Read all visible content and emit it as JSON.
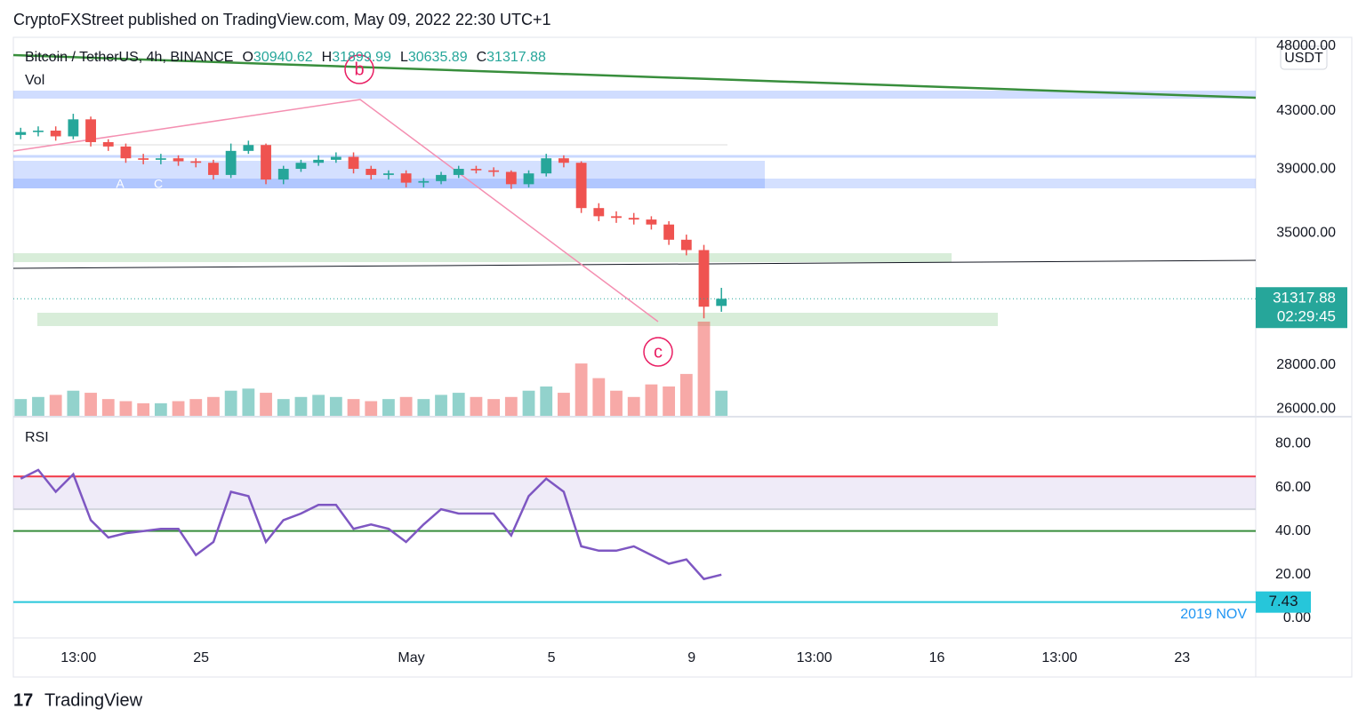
{
  "header": {
    "attribution": "CryptoFXStreet published on TradingView.com, May 09, 2022 22:30 UTC+1",
    "symbol": "Bitcoin / TetherUS, 4h, BINANCE",
    "ohlc_prefixes": [
      "O",
      "H",
      "L",
      "C"
    ],
    "currency": "USDT",
    "countdown": "02:29:45",
    "brand": "TradingView"
  },
  "annotations": [
    "b",
    "c",
    "A",
    "C"
  ],
  "chart_data": [
    {
      "type": "candlestick",
      "up_color": "#26a69a",
      "down_color": "#ef5350",
      "x": [
        -5.15,
        -4.65,
        -4.15,
        -3.65,
        -3.15,
        -2.65,
        -2.15,
        -1.65,
        -1.15,
        -0.65,
        -0.15,
        0.35,
        0.85,
        1.35,
        1.85,
        2.35,
        2.85,
        3.35,
        3.85,
        4.35,
        4.85,
        5.35,
        5.85,
        6.35,
        6.85,
        7.35,
        7.85,
        8.35,
        8.85,
        9.35,
        9.85,
        10.35,
        10.85,
        11.35,
        11.85,
        12.35,
        12.85,
        13.35,
        13.85,
        14.35,
        14.85
      ],
      "open": [
        41300,
        41500,
        41600,
        41200,
        42400,
        40800,
        40500,
        39700,
        39600,
        39700,
        39500,
        39400,
        38600,
        40200,
        40600,
        38300,
        39000,
        39400,
        39600,
        39800,
        39000,
        38600,
        38700,
        38100,
        38200,
        38600,
        39000,
        38900,
        38800,
        38000,
        38700,
        39700,
        39400,
        36500,
        36000,
        35900,
        35800,
        35500,
        34600,
        34000,
        30940.62
      ],
      "high": [
        41800,
        41900,
        41900,
        42800,
        42600,
        41000,
        40700,
        40000,
        40000,
        39900,
        39700,
        39600,
        40700,
        40900,
        40700,
        39200,
        39600,
        39900,
        40100,
        40100,
        39200,
        38900,
        38900,
        38400,
        38800,
        39200,
        39200,
        39100,
        38900,
        38900,
        40000,
        39900,
        39500,
        36800,
        36300,
        36200,
        36000,
        35700,
        34900,
        34300,
        31899.99
      ],
      "low": [
        41000,
        41200,
        40900,
        41000,
        40500,
        40200,
        39400,
        39300,
        39300,
        39200,
        39100,
        38300,
        38400,
        40000,
        38000,
        38000,
        38800,
        39200,
        39400,
        38700,
        38300,
        38300,
        37800,
        37800,
        38000,
        38400,
        38700,
        38500,
        37700,
        37800,
        38500,
        39100,
        36200,
        35700,
        35600,
        35500,
        35200,
        34300,
        33700,
        30300,
        30635.89
      ],
      "close": [
        41500,
        41600,
        41200,
        42400,
        40800,
        40500,
        39700,
        39600,
        39700,
        39500,
        39400,
        38600,
        40200,
        40600,
        38300,
        39000,
        39400,
        39600,
        39800,
        39000,
        38600,
        38700,
        38100,
        38200,
        38600,
        39000,
        38900,
        38800,
        38000,
        38700,
        39700,
        39400,
        36500,
        36000,
        35900,
        35800,
        35500,
        34600,
        34000,
        30900,
        31317.88
      ],
      "volume": {
        "name": "Vol",
        "values": [
          8,
          9,
          10,
          12,
          11,
          8,
          7,
          6,
          6,
          7,
          8,
          9,
          12,
          13,
          11,
          8,
          9,
          10,
          9,
          8,
          7,
          8,
          9,
          8,
          10,
          11,
          9,
          8,
          9,
          12,
          14,
          11,
          25,
          18,
          12,
          9,
          15,
          14,
          20,
          45,
          12
        ]
      },
      "log": true,
      "ylim": [
        25700,
        48700
      ],
      "yticks": [
        {
          "value": 48000,
          "label": "48000.00"
        },
        {
          "value": 43000,
          "label": "43000.00"
        },
        {
          "value": 39000,
          "label": "39000.00"
        },
        {
          "value": 35000,
          "label": "35000.00"
        },
        {
          "value": 28000,
          "label": "28000.00"
        },
        {
          "value": 26000,
          "label": "26000.00"
        }
      ],
      "xlim": [
        -5.36,
        30.1
      ],
      "xticks": [
        {
          "value": -3.5,
          "label": "13:00"
        },
        {
          "value": 0,
          "label": "25"
        },
        {
          "value": 6,
          "label": "May"
        },
        {
          "value": 10,
          "label": "5"
        },
        {
          "value": 14,
          "label": "9"
        },
        {
          "value": 17.5,
          "label": "13:00"
        },
        {
          "value": 21,
          "label": "16"
        },
        {
          "value": 24.5,
          "label": "13:00"
        },
        {
          "value": 28,
          "label": "23"
        }
      ]
    },
    {
      "type": "line",
      "name": "RSI",
      "color": "#7e57c2",
      "values": [
        64,
        68,
        58,
        66,
        45,
        37,
        39,
        40,
        41,
        41,
        29,
        35,
        58,
        56,
        35,
        45,
        48,
        52,
        52,
        41,
        43,
        41,
        35,
        43,
        50,
        48,
        48,
        48,
        38,
        56,
        64,
        58,
        33,
        31,
        31,
        33,
        29,
        25,
        27,
        18,
        20
      ],
      "ylim": [
        -9,
        92
      ],
      "yticks": [
        {
          "value": 80,
          "label": "80.00"
        },
        {
          "value": 60,
          "label": "60.00"
        },
        {
          "value": 40,
          "label": "40.00"
        },
        {
          "value": 20,
          "label": "20.00"
        },
        {
          "value": 0,
          "label": "0.00"
        }
      ],
      "band_color": "rgba(126,87,194,0.12)",
      "levels": [
        {
          "value": 65,
          "color": "#f23645"
        },
        {
          "value": 50,
          "color": "#d1d4dc"
        },
        {
          "value": 40,
          "color": "#388e3c"
        },
        {
          "value": 7.43,
          "color": "#26c6da",
          "note": "2019 NOV"
        }
      ]
    }
  ]
}
